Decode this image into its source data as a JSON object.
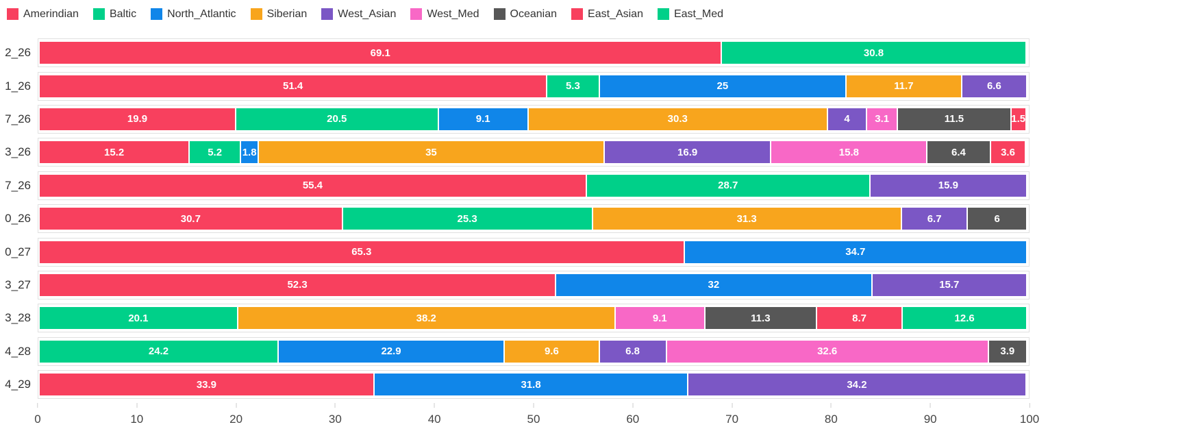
{
  "colors": {
    "Amerindian": "#f8405e",
    "Baltic": "#00d089",
    "North_Atlantic": "#1086e9",
    "Siberian": "#f8a51d",
    "West_Asian": "#7b57c5",
    "West_Med": "#f868c6",
    "Oceanian": "#575757",
    "East_Asian": "#f8405e",
    "East_Med": "#00d089"
  },
  "legend": {
    "position": "top",
    "items": [
      "Amerindian",
      "Baltic",
      "North_Atlantic",
      "Siberian",
      "West_Asian",
      "West_Med",
      "Oceanian",
      "East_Asian",
      "East_Med"
    ]
  },
  "chart_data": {
    "type": "bar",
    "orientation": "horizontal",
    "stacked": true,
    "xlim": [
      0,
      100
    ],
    "x_ticks": [
      0,
      10,
      20,
      30,
      40,
      50,
      60,
      70,
      80,
      90,
      100
    ],
    "grid": false,
    "legend_position": "top",
    "series_names": [
      "Amerindian",
      "Baltic",
      "North_Atlantic",
      "Siberian",
      "West_Asian",
      "West_Med",
      "Oceanian",
      "East_Asian",
      "East_Med"
    ],
    "rows": [
      {
        "label": "2_26",
        "segments": [
          {
            "series": "Amerindian",
            "value": 69.1
          },
          {
            "series": "Baltic",
            "value": 30.8
          }
        ]
      },
      {
        "label": "1_26",
        "segments": [
          {
            "series": "Amerindian",
            "value": 51.4
          },
          {
            "series": "Baltic",
            "value": 5.3
          },
          {
            "series": "North_Atlantic",
            "value": 25
          },
          {
            "series": "Siberian",
            "value": 11.7
          },
          {
            "series": "West_Asian",
            "value": 6.6
          }
        ]
      },
      {
        "label": "7_26",
        "segments": [
          {
            "series": "Amerindian",
            "value": 19.9
          },
          {
            "series": "Baltic",
            "value": 20.5
          },
          {
            "series": "North_Atlantic",
            "value": 9.1
          },
          {
            "series": "Siberian",
            "value": 30.3
          },
          {
            "series": "West_Asian",
            "value": 4
          },
          {
            "series": "West_Med",
            "value": 3.1
          },
          {
            "series": "Oceanian",
            "value": 11.5
          },
          {
            "series": "East_Asian",
            "value": 1.5
          }
        ]
      },
      {
        "label": "3_26",
        "segments": [
          {
            "series": "Amerindian",
            "value": 15.2
          },
          {
            "series": "Baltic",
            "value": 5.2
          },
          {
            "series": "North_Atlantic",
            "value": 1.8
          },
          {
            "series": "Siberian",
            "value": 35
          },
          {
            "series": "West_Asian",
            "value": 16.9
          },
          {
            "series": "West_Med",
            "value": 15.8
          },
          {
            "series": "Oceanian",
            "value": 6.4
          },
          {
            "series": "East_Asian",
            "value": 3.6
          }
        ]
      },
      {
        "label": "7_26",
        "segments": [
          {
            "series": "Amerindian",
            "value": 55.4
          },
          {
            "series": "Baltic",
            "value": 28.7
          },
          {
            "series": "West_Asian",
            "value": 15.9
          }
        ]
      },
      {
        "label": "0_26",
        "segments": [
          {
            "series": "Amerindian",
            "value": 30.7
          },
          {
            "series": "Baltic",
            "value": 25.3
          },
          {
            "series": "Siberian",
            "value": 31.3
          },
          {
            "series": "West_Asian",
            "value": 6.7
          },
          {
            "series": "Oceanian",
            "value": 6
          }
        ]
      },
      {
        "label": "0_27",
        "segments": [
          {
            "series": "Amerindian",
            "value": 65.3
          },
          {
            "series": "North_Atlantic",
            "value": 34.7
          }
        ]
      },
      {
        "label": "3_27",
        "segments": [
          {
            "series": "Amerindian",
            "value": 52.3
          },
          {
            "series": "North_Atlantic",
            "value": 32
          },
          {
            "series": "West_Asian",
            "value": 15.7
          }
        ]
      },
      {
        "label": "3_28",
        "segments": [
          {
            "series": "Baltic",
            "value": 20.1
          },
          {
            "series": "Siberian",
            "value": 38.2
          },
          {
            "series": "West_Med",
            "value": 9.1
          },
          {
            "series": "Oceanian",
            "value": 11.3
          },
          {
            "series": "East_Asian",
            "value": 8.7
          },
          {
            "series": "East_Med",
            "value": 12.6
          }
        ]
      },
      {
        "label": "4_28",
        "segments": [
          {
            "series": "Baltic",
            "value": 24.2
          },
          {
            "series": "North_Atlantic",
            "value": 22.9
          },
          {
            "series": "Siberian",
            "value": 9.6
          },
          {
            "series": "West_Asian",
            "value": 6.8
          },
          {
            "series": "West_Med",
            "value": 32.6
          },
          {
            "series": "Oceanian",
            "value": 3.9
          }
        ]
      },
      {
        "label": "4_29",
        "segments": [
          {
            "series": "Amerindian",
            "value": 33.9
          },
          {
            "series": "North_Atlantic",
            "value": 31.8
          },
          {
            "series": "West_Asian",
            "value": 34.2
          }
        ]
      }
    ]
  }
}
